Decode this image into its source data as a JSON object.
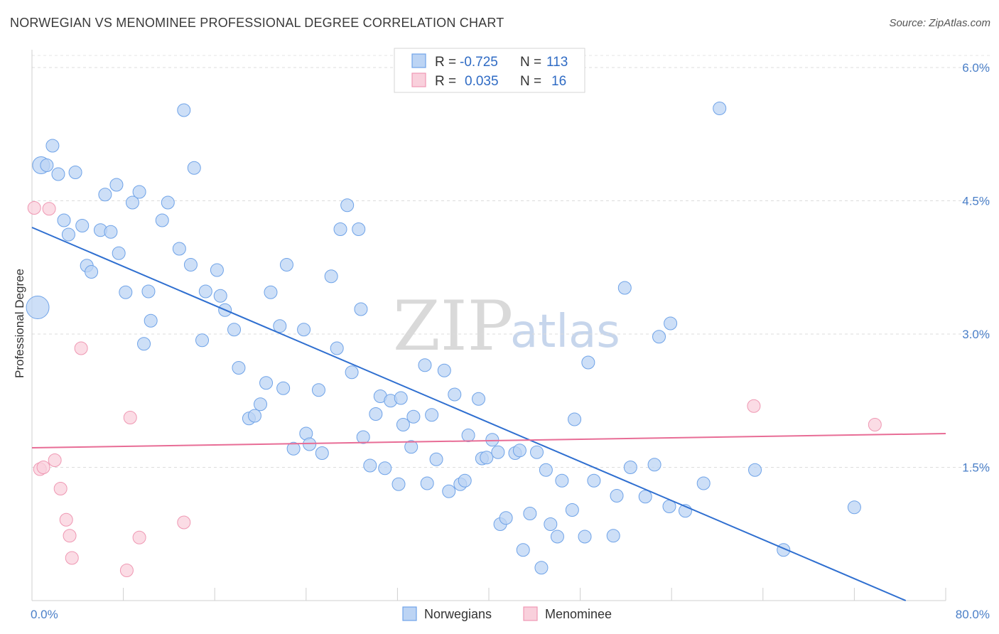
{
  "title": "NORWEGIAN VS MENOMINEE PROFESSIONAL DEGREE CORRELATION CHART",
  "source": "Source: ZipAtlas.com",
  "watermark": {
    "zip": "ZIP",
    "atlas": "atlas"
  },
  "legend_top": {
    "rows": [
      {
        "r_label": "R =",
        "r_value": "-0.725",
        "n_label": "N =",
        "n_value": "113",
        "color": "#a9c8f0"
      },
      {
        "r_label": "R =",
        "r_value": "0.035",
        "n_label": "N =",
        "n_value": "16",
        "color": "#f6b9cb"
      }
    ]
  },
  "legend_bottom": [
    {
      "label": "Norwegians",
      "color": "#a9c8f0"
    },
    {
      "label": "Menominee",
      "color": "#f6b9cb"
    }
  ],
  "chart_data": {
    "type": "scatter",
    "title": "NORWEGIAN VS MENOMINEE PROFESSIONAL DEGREE CORRELATION CHART",
    "xlabel": "",
    "ylabel": "Professional Degree",
    "xlim": [
      0,
      80
    ],
    "ylim": [
      0,
      6.2
    ],
    "x_tick_labels": [
      "0.0%",
      "80.0%"
    ],
    "y_ticks": [
      1.5,
      3.0,
      4.5,
      6.0
    ],
    "y_tick_labels": [
      "1.5%",
      "3.0%",
      "4.5%",
      "6.0%"
    ],
    "grid": "horizontal dashed",
    "series": [
      {
        "name": "Norwegians",
        "color": "#6fa3e8",
        "fill": "#bcd4f4",
        "trend": {
          "x": [
            0,
            76.5
          ],
          "y": [
            4.2,
            0.0
          ],
          "color": "#2f6fd0"
        },
        "points": [
          [
            0.8,
            4.9,
            12
          ],
          [
            1.3,
            4.9,
            9
          ],
          [
            1.8,
            5.12,
            9
          ],
          [
            2.3,
            4.8,
            9
          ],
          [
            3.8,
            4.82,
            9
          ],
          [
            2.8,
            4.28,
            9
          ],
          [
            3.2,
            4.12,
            9
          ],
          [
            4.4,
            4.22,
            9
          ],
          [
            6.4,
            4.57,
            9
          ],
          [
            7.4,
            4.68,
            9
          ],
          [
            8.8,
            4.48,
            9
          ],
          [
            9.4,
            4.6,
            9
          ],
          [
            11.4,
            4.28,
            9
          ],
          [
            11.9,
            4.48,
            9
          ],
          [
            12.9,
            3.96,
            9
          ],
          [
            13.3,
            5.52,
            9
          ],
          [
            13.9,
            3.78,
            9
          ],
          [
            14.2,
            4.87,
            9
          ],
          [
            15.2,
            3.48,
            9
          ],
          [
            16.2,
            3.72,
            9
          ],
          [
            6.0,
            4.17,
            9
          ],
          [
            6.9,
            4.15,
            9
          ],
          [
            7.6,
            3.91,
            9
          ],
          [
            4.8,
            3.77,
            9
          ],
          [
            5.2,
            3.7,
            9
          ],
          [
            8.2,
            3.47,
            9
          ],
          [
            10.2,
            3.48,
            9
          ],
          [
            10.4,
            3.15,
            9
          ],
          [
            9.8,
            2.89,
            9
          ],
          [
            14.9,
            2.93,
            9
          ],
          [
            16.5,
            3.43,
            9
          ],
          [
            16.9,
            3.27,
            9
          ],
          [
            17.7,
            3.05,
            9
          ],
          [
            18.1,
            2.62,
            9
          ],
          [
            19.0,
            2.05,
            9
          ],
          [
            19.5,
            2.08,
            9
          ],
          [
            20.0,
            2.21,
            9
          ],
          [
            20.9,
            3.47,
            9
          ],
          [
            20.5,
            2.45,
            9
          ],
          [
            21.7,
            3.09,
            9
          ],
          [
            22.0,
            2.39,
            9
          ],
          [
            22.3,
            3.78,
            9
          ],
          [
            22.9,
            1.71,
            9
          ],
          [
            23.8,
            3.05,
            9
          ],
          [
            24.0,
            1.88,
            9
          ],
          [
            24.3,
            1.76,
            9
          ],
          [
            25.1,
            2.37,
            9
          ],
          [
            25.4,
            1.66,
            9
          ],
          [
            26.2,
            3.65,
            9
          ],
          [
            26.7,
            2.84,
            9
          ],
          [
            27.0,
            4.18,
            9
          ],
          [
            27.6,
            4.45,
            9
          ],
          [
            28.0,
            2.57,
            9
          ],
          [
            28.6,
            4.18,
            9
          ],
          [
            28.8,
            3.28,
            9
          ],
          [
            29.0,
            1.84,
            9
          ],
          [
            29.6,
            1.52,
            9
          ],
          [
            30.1,
            2.1,
            9
          ],
          [
            30.5,
            2.3,
            9
          ],
          [
            30.9,
            1.49,
            9
          ],
          [
            31.4,
            2.25,
            9
          ],
          [
            32.3,
            2.28,
            9
          ],
          [
            32.1,
            1.31,
            9
          ],
          [
            32.5,
            1.98,
            9
          ],
          [
            33.2,
            1.73,
            9
          ],
          [
            33.4,
            2.07,
            9
          ],
          [
            34.4,
            2.65,
            9
          ],
          [
            34.6,
            1.32,
            9
          ],
          [
            35.0,
            2.09,
            9
          ],
          [
            35.4,
            1.59,
            9
          ],
          [
            36.1,
            2.59,
            9
          ],
          [
            36.5,
            1.23,
            9
          ],
          [
            37.0,
            2.32,
            9
          ],
          [
            37.5,
            1.31,
            9
          ],
          [
            37.9,
            1.35,
            9
          ],
          [
            38.2,
            1.86,
            9
          ],
          [
            39.1,
            2.27,
            9
          ],
          [
            39.4,
            1.6,
            9
          ],
          [
            39.8,
            1.61,
            9
          ],
          [
            40.3,
            1.81,
            9
          ],
          [
            40.8,
            1.67,
            9
          ],
          [
            41.0,
            0.86,
            9
          ],
          [
            41.5,
            0.93,
            9
          ],
          [
            42.3,
            1.66,
            9
          ],
          [
            42.7,
            1.69,
            9
          ],
          [
            43.0,
            0.57,
            9
          ],
          [
            43.6,
            0.98,
            9
          ],
          [
            44.2,
            1.67,
            9
          ],
          [
            44.6,
            0.37,
            9
          ],
          [
            45.0,
            1.47,
            9
          ],
          [
            45.4,
            0.86,
            9
          ],
          [
            46.0,
            0.72,
            9
          ],
          [
            46.4,
            1.35,
            9
          ],
          [
            47.3,
            1.02,
            9
          ],
          [
            47.5,
            2.04,
            9
          ],
          [
            48.4,
            0.72,
            9
          ],
          [
            48.7,
            2.68,
            9
          ],
          [
            49.2,
            1.35,
            9
          ],
          [
            50.9,
            0.73,
            9
          ],
          [
            51.2,
            1.18,
            9
          ],
          [
            51.9,
            3.52,
            9
          ],
          [
            52.4,
            1.5,
            9
          ],
          [
            53.7,
            1.17,
            9
          ],
          [
            54.5,
            1.53,
            9
          ],
          [
            54.9,
            2.97,
            9
          ],
          [
            55.8,
            1.06,
            9
          ],
          [
            55.9,
            3.12,
            9
          ],
          [
            57.2,
            1.01,
            9
          ],
          [
            58.8,
            1.32,
            9
          ],
          [
            60.2,
            5.54,
            9
          ],
          [
            63.3,
            1.47,
            9
          ],
          [
            65.8,
            0.57,
            9
          ],
          [
            72.0,
            1.05,
            9
          ],
          [
            0.5,
            3.3,
            16
          ]
        ]
      },
      {
        "name": "Menominee",
        "color": "#ef98b3",
        "fill": "#f9d0dc",
        "trend": {
          "x": [
            0,
            80
          ],
          "y": [
            1.72,
            1.88
          ],
          "color": "#e86d96"
        },
        "points": [
          [
            0.2,
            4.42,
            9
          ],
          [
            1.5,
            4.41,
            9
          ],
          [
            4.3,
            2.84,
            9
          ],
          [
            8.6,
            2.06,
            9
          ],
          [
            0.7,
            1.48,
            9
          ],
          [
            1.0,
            1.5,
            9
          ],
          [
            2.0,
            1.58,
            9
          ],
          [
            2.5,
            1.26,
            9
          ],
          [
            3.0,
            0.91,
            9
          ],
          [
            3.3,
            0.73,
            9
          ],
          [
            3.5,
            0.48,
            9
          ],
          [
            8.3,
            0.34,
            9
          ],
          [
            9.4,
            0.71,
            9
          ],
          [
            13.3,
            0.88,
            9
          ],
          [
            63.2,
            2.19,
            9
          ],
          [
            73.8,
            1.98,
            9
          ]
        ]
      }
    ]
  }
}
